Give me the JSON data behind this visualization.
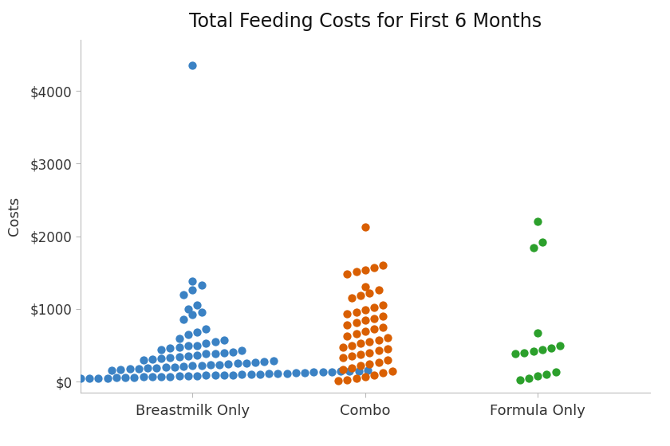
{
  "title": "Total Feeding Costs for First 6 Months",
  "ylabel": "Costs",
  "categories": [
    "Breastmilk Only",
    "Combo",
    "Formula Only"
  ],
  "colors": [
    "#3b82c4",
    "#d95f02",
    "#2ca02c"
  ],
  "ylim": [
    -150,
    4700
  ],
  "yticks": [
    0,
    1000,
    2000,
    3000,
    4000
  ],
  "background_color": "#ffffff",
  "breastmilk_data": [
    4350,
    1380,
    1330,
    1260,
    1200,
    1050,
    1000,
    960,
    920,
    860,
    720,
    680,
    650,
    590,
    570,
    550,
    530,
    500,
    490,
    475,
    460,
    445,
    425,
    410,
    400,
    390,
    380,
    368,
    350,
    340,
    328,
    318,
    308,
    298,
    288,
    270,
    262,
    254,
    248,
    242,
    236,
    230,
    224,
    218,
    208,
    202,
    196,
    190,
    184,
    178,
    172,
    166,
    160,
    152,
    148,
    144,
    140,
    136,
    132,
    128,
    124,
    120,
    116,
    112,
    108,
    104,
    100,
    96,
    93,
    90,
    87,
    84,
    81,
    78,
    75,
    72,
    69,
    66,
    62,
    59,
    56,
    53,
    50,
    47,
    44,
    41,
    38,
    35,
    32,
    29,
    26,
    23,
    20
  ],
  "combo_data": [
    2130,
    1600,
    1565,
    1540,
    1510,
    1485,
    1310,
    1265,
    1220,
    1185,
    1150,
    1050,
    1020,
    990,
    960,
    930,
    900,
    870,
    840,
    810,
    780,
    750,
    720,
    690,
    660,
    630,
    600,
    575,
    550,
    525,
    500,
    475,
    450,
    425,
    400,
    375,
    350,
    325,
    295,
    268,
    242,
    218,
    185,
    162,
    140,
    120,
    90,
    65,
    42,
    22,
    8
  ],
  "formula_data": [
    2200,
    1920,
    1840,
    670,
    490,
    460,
    445,
    415,
    400,
    388,
    130,
    100,
    75,
    50,
    25
  ],
  "dot_size": 55,
  "title_fontsize": 17,
  "label_fontsize": 13,
  "tick_fontsize": 12
}
